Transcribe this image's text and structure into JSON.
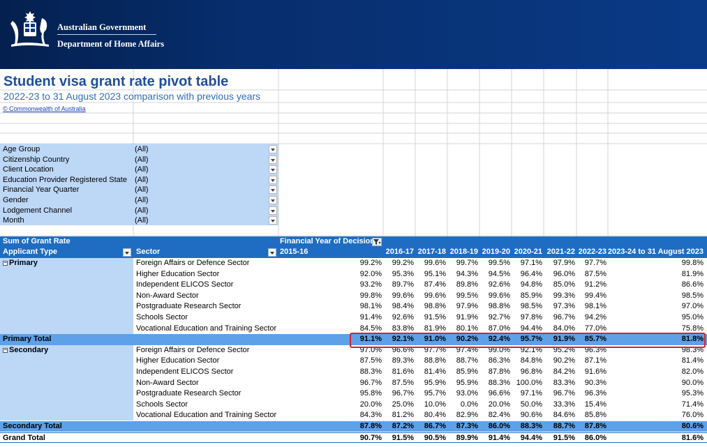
{
  "banner": {
    "gov_title": "Australian Government",
    "department": "Department of Home Affairs"
  },
  "sheet": {
    "title": "Student visa grant rate pivot table",
    "subtitle": "2022-23 to 31 August 2023 comparison with previous years",
    "copyright": "© Commonwealth of Australia"
  },
  "filters": [
    {
      "label": "Age Group",
      "value": "(All)"
    },
    {
      "label": "Citizenship Country",
      "value": "(All)"
    },
    {
      "label": "Client Location",
      "value": "(All)"
    },
    {
      "label": "Education Provider Registered State",
      "value": "(All)"
    },
    {
      "label": "Financial Year Quarter",
      "value": "(All)"
    },
    {
      "label": "Gender",
      "value": "(All)"
    },
    {
      "label": "Lodgement Channel",
      "value": "(All)"
    },
    {
      "label": "Month",
      "value": "(All)"
    }
  ],
  "pivot": {
    "measure": "Sum of Grant Rate",
    "col_field": "Financial Year of Decision",
    "row_field_1": "Applicant Type",
    "row_field_2": "Sector",
    "years": [
      "2015-16",
      "2016-17",
      "2017-18",
      "2018-19",
      "2019-20",
      "2020-21",
      "2021-22",
      "2022-23",
      "2023-24 to 31 August 2023"
    ],
    "rows": [
      {
        "type": "Primary",
        "sector": "Foreign Affairs or Defence Sector",
        "values": [
          "99.2%",
          "99.2%",
          "99.6%",
          "99.7%",
          "99.5%",
          "97.1%",
          "97.9%",
          "97.7%",
          "99.8%"
        ]
      },
      {
        "type": "",
        "sector": "Higher Education Sector",
        "values": [
          "92.0%",
          "95.3%",
          "95.1%",
          "94.3%",
          "94.5%",
          "96.4%",
          "96.0%",
          "87.5%",
          "81.9%"
        ]
      },
      {
        "type": "",
        "sector": "Independent ELICOS Sector",
        "values": [
          "93.2%",
          "89.7%",
          "87.4%",
          "89.8%",
          "92.6%",
          "94.8%",
          "85.0%",
          "91.2%",
          "86.6%"
        ]
      },
      {
        "type": "",
        "sector": "Non-Award Sector",
        "values": [
          "99.8%",
          "99.6%",
          "99.6%",
          "99.5%",
          "99.6%",
          "85.9%",
          "99.3%",
          "99.4%",
          "98.5%"
        ]
      },
      {
        "type": "",
        "sector": "Postgraduate Research Sector",
        "values": [
          "98.1%",
          "98.4%",
          "98.8%",
          "97.9%",
          "98.8%",
          "98.5%",
          "97.3%",
          "98.1%",
          "97.0%"
        ]
      },
      {
        "type": "",
        "sector": "Schools Sector",
        "values": [
          "91.4%",
          "92.6%",
          "91.5%",
          "91.9%",
          "92.7%",
          "97.8%",
          "96.7%",
          "94.2%",
          "95.0%"
        ]
      },
      {
        "type": "",
        "sector": "Vocational Education and Training Sector",
        "values": [
          "84.5%",
          "83.8%",
          "81.9%",
          "80.1%",
          "87.0%",
          "94.4%",
          "84.0%",
          "77.0%",
          "75.8%"
        ]
      },
      {
        "total": "Primary Total",
        "values": [
          "91.1%",
          "92.1%",
          "91.0%",
          "90.2%",
          "92.4%",
          "95.7%",
          "91.9%",
          "85.7%",
          "81.8%"
        ]
      },
      {
        "type": "Secondary",
        "sector": "Foreign Affairs or Defence Sector",
        "values": [
          "97.0%",
          "96.6%",
          "97.7%",
          "97.4%",
          "99.0%",
          "92.1%",
          "95.2%",
          "96.3%",
          "98.3%"
        ]
      },
      {
        "type": "",
        "sector": "Higher Education Sector",
        "values": [
          "87.5%",
          "89.3%",
          "88.8%",
          "88.7%",
          "86.3%",
          "84.8%",
          "90.2%",
          "87.1%",
          "81.4%"
        ]
      },
      {
        "type": "",
        "sector": "Independent ELICOS Sector",
        "values": [
          "88.3%",
          "81.6%",
          "81.4%",
          "85.9%",
          "87.8%",
          "96.8%",
          "84.2%",
          "91.6%",
          "82.0%"
        ]
      },
      {
        "type": "",
        "sector": "Non-Award Sector",
        "values": [
          "96.7%",
          "87.5%",
          "95.9%",
          "95.9%",
          "88.3%",
          "100.0%",
          "83.3%",
          "90.3%",
          "90.0%"
        ]
      },
      {
        "type": "",
        "sector": "Postgraduate Research Sector",
        "values": [
          "95.8%",
          "96.7%",
          "95.7%",
          "93.0%",
          "96.6%",
          "97.1%",
          "96.7%",
          "96.3%",
          "95.3%"
        ]
      },
      {
        "type": "",
        "sector": "Schools Sector",
        "values": [
          "20.0%",
          "25.0%",
          "10.0%",
          "0.0%",
          "20.0%",
          "50.0%",
          "33.3%",
          "15.4%",
          "71.4%"
        ]
      },
      {
        "type": "",
        "sector": "Vocational Education and Training Sector",
        "values": [
          "84.3%",
          "81.2%",
          "80.4%",
          "82.9%",
          "82.4%",
          "90.6%",
          "84.6%",
          "85.8%",
          "76.0%"
        ]
      },
      {
        "total": "Secondary Total",
        "values": [
          "87.8%",
          "87.2%",
          "86.7%",
          "87.3%",
          "86.0%",
          "88.3%",
          "88.7%",
          "87.8%",
          "80.6%"
        ]
      },
      {
        "grand": "Grand Total",
        "values": [
          "90.7%",
          "91.5%",
          "90.5%",
          "89.9%",
          "91.4%",
          "94.4%",
          "91.5%",
          "86.0%",
          "81.6%"
        ]
      }
    ]
  }
}
